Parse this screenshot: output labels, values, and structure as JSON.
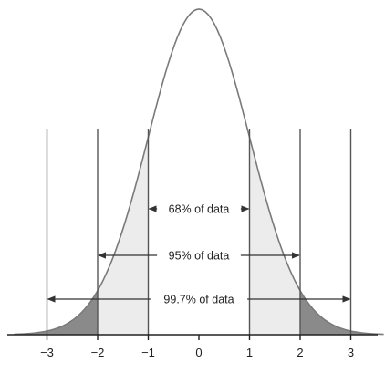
{
  "chart_data": {
    "type": "area",
    "title": "",
    "xlabel": "",
    "ylabel": "",
    "xlim": [
      -3.65,
      3.65
    ],
    "ylim": [
      0,
      0.4
    ],
    "mean": 0,
    "sd": 1,
    "x_ticks": [
      -3,
      -2,
      -1,
      0,
      1,
      2,
      3
    ],
    "x_tick_labels": [
      "−3",
      "−2",
      "−1",
      "0",
      "1",
      "2",
      "3"
    ],
    "guide_lines": [
      -3,
      -2,
      -1,
      1,
      2,
      3
    ],
    "regions": [
      {
        "from": -3.65,
        "to": -2,
        "shade": "dark"
      },
      {
        "from": -2,
        "to": -1,
        "shade": "light"
      },
      {
        "from": 1,
        "to": 2,
        "shade": "light"
      },
      {
        "from": 2,
        "to": 3.65,
        "shade": "dark"
      }
    ],
    "intervals": [
      {
        "label": "68% of data",
        "from": -1,
        "to": 1
      },
      {
        "label": "95% of data",
        "from": -2,
        "to": 2
      },
      {
        "label": "99.7% of data",
        "from": -3,
        "to": 3
      }
    ],
    "grid": false,
    "legend": "none"
  },
  "colors": {
    "curve": "#7a7a7a",
    "guide_lines": "#555555",
    "dark_fill": "#8a8a8a",
    "light_fill": "#ececec",
    "axis": "#222222",
    "text": "#222222"
  }
}
